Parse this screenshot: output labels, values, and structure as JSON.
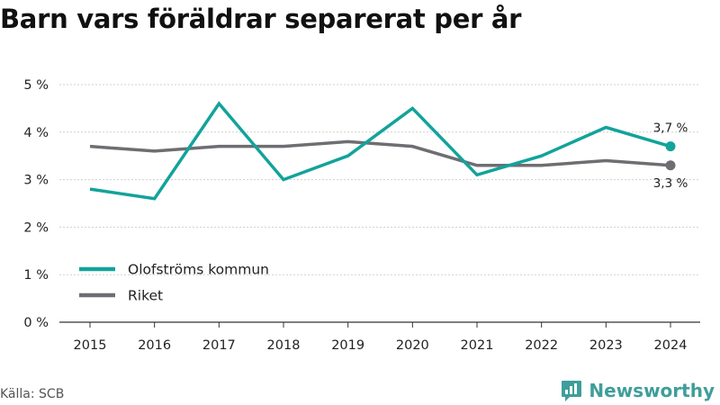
{
  "title": "Barn vars föräldrar separerat per år",
  "source": "Källa: SCB",
  "brand": {
    "name": "Newsworthy",
    "icon": "newsworthy-logo-icon",
    "color": "#3f9e9a"
  },
  "chart_data": {
    "type": "line",
    "title": "Barn vars föräldrar separerat per år",
    "x": [
      2015,
      2016,
      2017,
      2018,
      2019,
      2020,
      2021,
      2022,
      2023,
      2024
    ],
    "series": [
      {
        "name": "Olofströms kommun",
        "color": "#12a39b",
        "values": [
          2.8,
          2.6,
          4.6,
          3.0,
          3.5,
          4.5,
          3.1,
          3.5,
          4.1,
          3.7
        ],
        "end_label": "3,7 %"
      },
      {
        "name": "Riket",
        "color": "#6e6e72",
        "values": [
          3.7,
          3.6,
          3.7,
          3.7,
          3.8,
          3.7,
          3.3,
          3.3,
          3.4,
          3.3
        ],
        "end_label": "3,3 %"
      }
    ],
    "ylim": [
      0,
      5
    ],
    "y_ticks": [
      0,
      1,
      2,
      3,
      4,
      5
    ],
    "y_tick_labels": [
      "0 %",
      "1 %",
      "2 %",
      "3 %",
      "4 %",
      "5 %"
    ],
    "grid": "horizontal-dashed",
    "legend_position": "bottom-left"
  }
}
